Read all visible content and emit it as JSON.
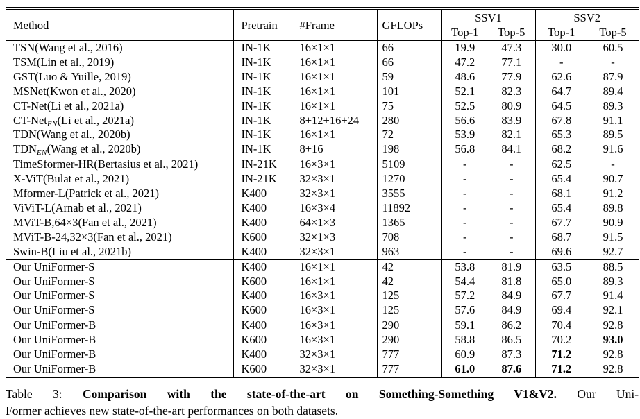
{
  "table": {
    "header": {
      "method": "Method",
      "pretrain": "Pretrain",
      "frame": "#Frame",
      "gflops": "GFLOPs",
      "groups": [
        {
          "label": "SSV1",
          "sub": [
            "Top-1",
            "Top-5"
          ]
        },
        {
          "label": "SSV2",
          "sub": [
            "Top-1",
            "Top-5"
          ]
        }
      ]
    },
    "rows": [
      {
        "name": "TSN",
        "sub": "",
        "cite": "(Wang et al., 2016)",
        "pretrain": "IN-1K",
        "frame": "16×1×1",
        "gflops": "66",
        "s1t1": "19.9",
        "s1t5": "47.3",
        "s2t1": "30.0",
        "s2t5": "60.5",
        "bold": [],
        "rule_above": false
      },
      {
        "name": "TSM",
        "sub": "",
        "cite": "(Lin et al., 2019)",
        "pretrain": "IN-1K",
        "frame": "16×1×1",
        "gflops": "66",
        "s1t1": "47.2",
        "s1t5": "77.1",
        "s2t1": "-",
        "s2t5": "-",
        "bold": [],
        "rule_above": false
      },
      {
        "name": "GST",
        "sub": "",
        "cite": "(Luo & Yuille, 2019)",
        "pretrain": "IN-1K",
        "frame": "16×1×1",
        "gflops": "59",
        "s1t1": "48.6",
        "s1t5": "77.9",
        "s2t1": "62.6",
        "s2t5": "87.9",
        "bold": [],
        "rule_above": false
      },
      {
        "name": "MSNet",
        "sub": "",
        "cite": "(Kwon et al., 2020)",
        "pretrain": "IN-1K",
        "frame": "16×1×1",
        "gflops": "101",
        "s1t1": "52.1",
        "s1t5": "82.3",
        "s2t1": "64.7",
        "s2t5": "89.4",
        "bold": [],
        "rule_above": false
      },
      {
        "name": "CT-Net",
        "sub": "",
        "cite": "(Li et al., 2021a)",
        "pretrain": "IN-1K",
        "frame": "16×1×1",
        "gflops": "75",
        "s1t1": "52.5",
        "s1t5": "80.9",
        "s2t1": "64.5",
        "s2t5": "89.3",
        "bold": [],
        "rule_above": false
      },
      {
        "name": "CT-Net",
        "sub": "EN",
        "cite": "(Li et al., 2021a)",
        "pretrain": "IN-1K",
        "frame": "8+12+16+24",
        "gflops": "280",
        "s1t1": "56.6",
        "s1t5": "83.9",
        "s2t1": "67.8",
        "s2t5": "91.1",
        "bold": [],
        "rule_above": false
      },
      {
        "name": "TDN",
        "sub": "",
        "cite": "(Wang et al., 2020b)",
        "pretrain": "IN-1K",
        "frame": "16×1×1",
        "gflops": "72",
        "s1t1": "53.9",
        "s1t5": "82.1",
        "s2t1": "65.3",
        "s2t5": "89.5",
        "bold": [],
        "rule_above": false
      },
      {
        "name": "TDN",
        "sub": "EN",
        "cite": "(Wang et al., 2020b)",
        "pretrain": "IN-1K",
        "frame": "8+16",
        "gflops": "198",
        "s1t1": "56.8",
        "s1t5": "84.1",
        "s2t1": "68.2",
        "s2t5": "91.6",
        "bold": [],
        "rule_above": false
      },
      {
        "name": "TimeSformer-HR",
        "sub": "",
        "cite": "(Bertasius et al., 2021)",
        "pretrain": "IN-21K",
        "frame": "16×3×1",
        "gflops": "5109",
        "s1t1": "-",
        "s1t5": "-",
        "s2t1": "62.5",
        "s2t5": "-",
        "bold": [],
        "rule_above": true
      },
      {
        "name": "X-ViT",
        "sub": "",
        "cite": "(Bulat et al., 2021)",
        "pretrain": "IN-21K",
        "frame": "32×3×1",
        "gflops": "1270",
        "s1t1": "-",
        "s1t5": "-",
        "s2t1": "65.4",
        "s2t5": "90.7",
        "bold": [],
        "rule_above": false
      },
      {
        "name": "Mformer-L",
        "sub": "",
        "cite": "(Patrick et al., 2021)",
        "pretrain": "K400",
        "frame": "32×3×1",
        "gflops": "3555",
        "s1t1": "-",
        "s1t5": "-",
        "s2t1": "68.1",
        "s2t5": "91.2",
        "bold": [],
        "rule_above": false
      },
      {
        "name": "ViViT-L",
        "sub": "",
        "cite": "(Arnab et al., 2021)",
        "pretrain": "K400",
        "frame": "16×3×4",
        "gflops": "11892",
        "s1t1": "-",
        "s1t5": "-",
        "s2t1": "65.4",
        "s2t5": "89.8",
        "bold": [],
        "rule_above": false
      },
      {
        "name": "MViT-B,64×3",
        "sub": "",
        "cite": "(Fan et al., 2021)",
        "pretrain": "K400",
        "frame": "64×1×3",
        "gflops": "1365",
        "s1t1": "-",
        "s1t5": "-",
        "s2t1": "67.7",
        "s2t5": "90.9",
        "bold": [],
        "rule_above": false
      },
      {
        "name": "MViT-B-24,32×3",
        "sub": "",
        "cite": "(Fan et al., 2021)",
        "pretrain": "K600",
        "frame": "32×1×3",
        "gflops": "708",
        "s1t1": "-",
        "s1t5": "-",
        "s2t1": "68.7",
        "s2t5": "91.5",
        "bold": [],
        "rule_above": false
      },
      {
        "name": "Swin-B",
        "sub": "",
        "cite": "(Liu et al., 2021b)",
        "pretrain": "K400",
        "frame": "32×3×1",
        "gflops": "963",
        "s1t1": "-",
        "s1t5": "-",
        "s2t1": "69.6",
        "s2t5": "92.7",
        "bold": [],
        "rule_above": false
      },
      {
        "name": "Our UniFormer-S",
        "sub": "",
        "cite": "",
        "pretrain": "K400",
        "frame": "16×1×1",
        "gflops": "42",
        "s1t1": "53.8",
        "s1t5": "81.9",
        "s2t1": "63.5",
        "s2t5": "88.5",
        "bold": [],
        "rule_above": true
      },
      {
        "name": "Our UniFormer-S",
        "sub": "",
        "cite": "",
        "pretrain": "K600",
        "frame": "16×1×1",
        "gflops": "42",
        "s1t1": "54.4",
        "s1t5": "81.8",
        "s2t1": "65.0",
        "s2t5": "89.3",
        "bold": [],
        "rule_above": false
      },
      {
        "name": "Our UniFormer-S",
        "sub": "",
        "cite": "",
        "pretrain": "K400",
        "frame": "16×3×1",
        "gflops": "125",
        "s1t1": "57.2",
        "s1t5": "84.9",
        "s2t1": "67.7",
        "s2t5": "91.4",
        "bold": [],
        "rule_above": false
      },
      {
        "name": "Our UniFormer-S",
        "sub": "",
        "cite": "",
        "pretrain": "K600",
        "frame": "16×3×1",
        "gflops": "125",
        "s1t1": "57.6",
        "s1t5": "84.9",
        "s2t1": "69.4",
        "s2t5": "92.1",
        "bold": [],
        "rule_above": false
      },
      {
        "name": "Our UniFormer-B",
        "sub": "",
        "cite": "",
        "pretrain": "K400",
        "frame": "16×3×1",
        "gflops": "290",
        "s1t1": "59.1",
        "s1t5": "86.2",
        "s2t1": "70.4",
        "s2t5": "92.8",
        "bold": [],
        "rule_above": true
      },
      {
        "name": "Our UniFormer-B",
        "sub": "",
        "cite": "",
        "pretrain": "K600",
        "frame": "16×3×1",
        "gflops": "290",
        "s1t1": "58.8",
        "s1t5": "86.5",
        "s2t1": "70.2",
        "s2t5": "93.0",
        "bold": [
          "s2t5"
        ],
        "rule_above": false
      },
      {
        "name": "Our UniFormer-B",
        "sub": "",
        "cite": "",
        "pretrain": "K400",
        "frame": "32×3×1",
        "gflops": "777",
        "s1t1": "60.9",
        "s1t5": "87.3",
        "s2t1": "71.2",
        "s2t5": "92.8",
        "bold": [
          "s2t1"
        ],
        "rule_above": false
      },
      {
        "name": "Our UniFormer-B",
        "sub": "",
        "cite": "",
        "pretrain": "K600",
        "frame": "32×3×1",
        "gflops": "777",
        "s1t1": "61.0",
        "s1t5": "87.6",
        "s2t1": "71.2",
        "s2t5": "92.8",
        "bold": [
          "s1t1",
          "s1t5",
          "s2t1"
        ],
        "rule_above": false
      }
    ]
  },
  "caption": {
    "prefix": "Table 3:",
    "bold_text": "Comparison with the state-of-the-art on Something-Something V1&V2.",
    "line1_rest": "Our Uni-",
    "line2": "Former achieves new state-of-the-art performances on both datasets."
  }
}
